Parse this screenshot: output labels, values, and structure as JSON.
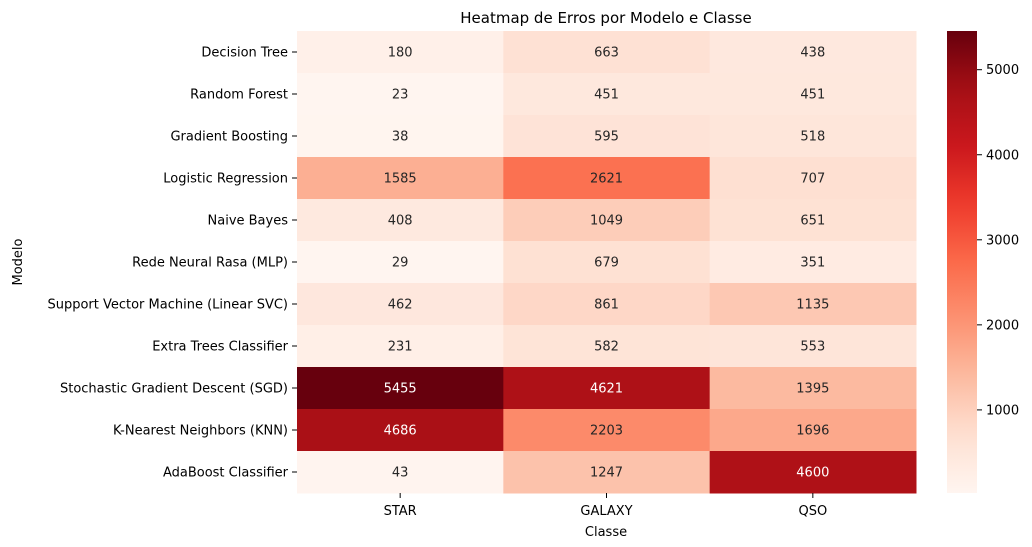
{
  "chart_data": {
    "type": "heatmap",
    "title": "Heatmap de Erros por Modelo e Classe",
    "xlabel": "Classe",
    "ylabel": "Modelo",
    "columns": [
      "STAR",
      "GALAXY",
      "QSO"
    ],
    "rows": [
      "Decision Tree",
      "Random Forest",
      "Gradient Boosting",
      "Logistic Regression",
      "Naive Bayes",
      "Rede Neural Rasa (MLP)",
      "Support Vector Machine (Linear SVC)",
      "Extra Trees Classifier",
      "Stochastic Gradient Descent (SGD)",
      "K-Nearest Neighbors (KNN)",
      "AdaBoost Classifier"
    ],
    "values": [
      [
        180,
        663,
        438
      ],
      [
        23,
        451,
        451
      ],
      [
        38,
        595,
        518
      ],
      [
        1585,
        2621,
        707
      ],
      [
        408,
        1049,
        651
      ],
      [
        29,
        679,
        351
      ],
      [
        462,
        861,
        1135
      ],
      [
        231,
        582,
        553
      ],
      [
        5455,
        4621,
        1395
      ],
      [
        4686,
        2203,
        1696
      ],
      [
        43,
        1247,
        4600
      ]
    ],
    "colorscale": "Reds",
    "vmin": 23,
    "vmax": 5455,
    "colorbar_ticks": [
      1000,
      2000,
      3000,
      4000,
      5000
    ],
    "colorbar_tick_labels": [
      "1000",
      "2000",
      "3000",
      "4000",
      "5000"
    ]
  }
}
